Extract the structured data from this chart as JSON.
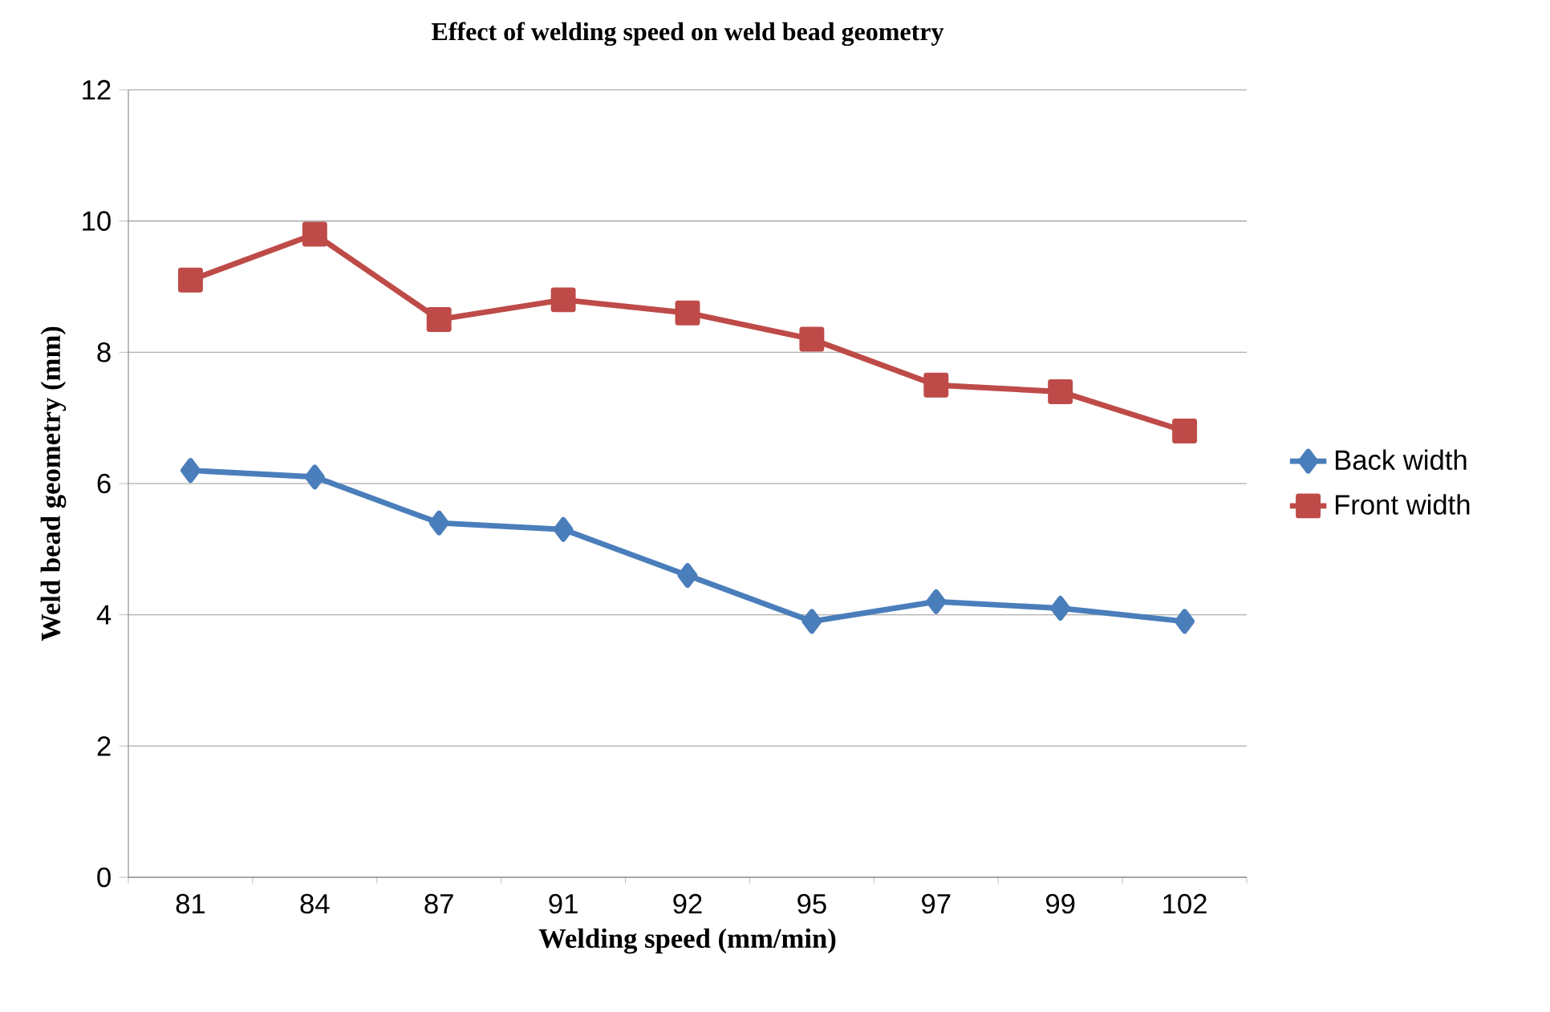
{
  "chart_data": {
    "type": "line",
    "title": "Effect of welding speed on weld bead geometry",
    "xlabel": "Welding speed (mm/min)",
    "ylabel": "Weld bead geometry (mm)",
    "categories": [
      "81",
      "84",
      "87",
      "91",
      "92",
      "95",
      "97",
      "99",
      "102"
    ],
    "series": [
      {
        "name": "Back width",
        "color": "#4a7ebb",
        "marker": "diamond",
        "values": [
          6.2,
          6.1,
          5.4,
          5.3,
          4.6,
          3.9,
          4.2,
          4.1,
          3.9
        ]
      },
      {
        "name": "Front width",
        "color": "#be4b48",
        "marker": "square",
        "values": [
          9.1,
          9.8,
          8.5,
          8.8,
          8.6,
          8.2,
          7.5,
          7.4,
          6.8
        ]
      }
    ],
    "ylim": [
      0,
      12
    ],
    "yticks": [
      0,
      2,
      4,
      6,
      8,
      10,
      12
    ],
    "grid": "y",
    "legend": "right",
    "line_style": "solid"
  }
}
